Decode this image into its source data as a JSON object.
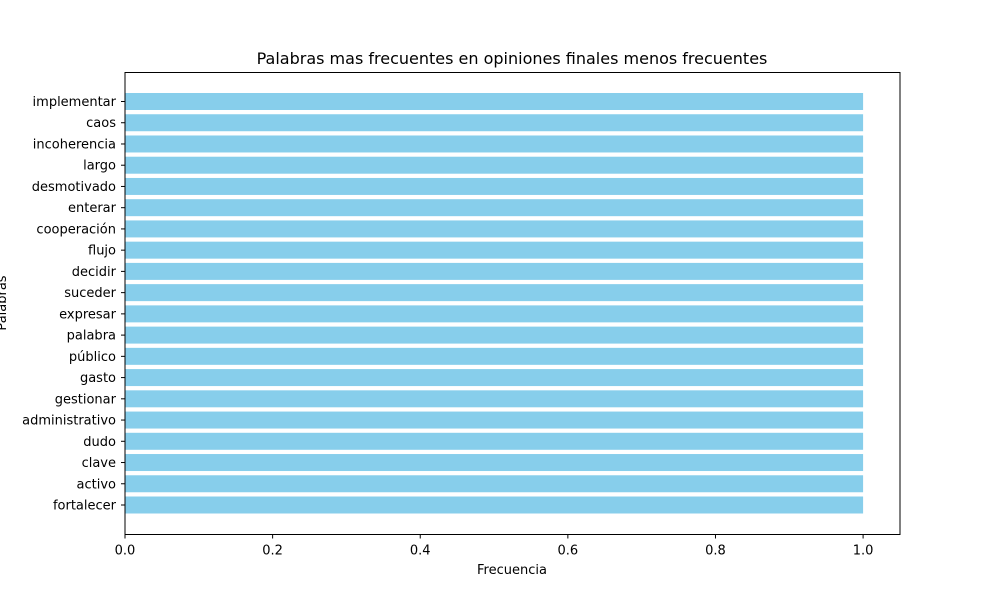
{
  "chart_data": {
    "type": "bar",
    "orientation": "horizontal",
    "title": "Palabras mas frecuentes en opiniones finales menos frecuentes",
    "xlabel": "Frecuencia",
    "ylabel": "Palabras",
    "xlim": [
      0,
      1.05
    ],
    "x_ticks": [
      "0.0",
      "0.2",
      "0.4",
      "0.6",
      "0.8",
      "1.0"
    ],
    "bar_color": "#87CEEB",
    "grid": false,
    "categories": [
      "implementar",
      "caos",
      "incoherencia",
      "largo",
      "desmotivado",
      "enterar",
      "cooperación",
      "flujo",
      "decidir",
      "suceder",
      "expresar",
      "palabra",
      "público",
      "gasto",
      "gestionar",
      "administrativo",
      "dudo",
      "clave",
      "activo",
      "fortalecer"
    ],
    "values": [
      1,
      1,
      1,
      1,
      1,
      1,
      1,
      1,
      1,
      1,
      1,
      1,
      1,
      1,
      1,
      1,
      1,
      1,
      1,
      1
    ]
  }
}
